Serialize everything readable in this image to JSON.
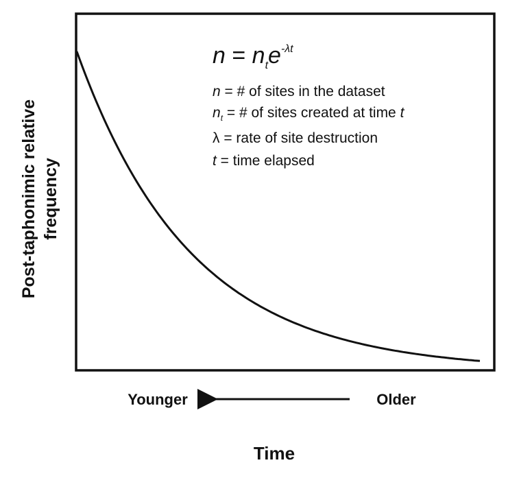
{
  "formula": {
    "lhs": "n",
    "equals": " = ",
    "base": "n",
    "base_sub": "t",
    "exp_base": "e",
    "exponent": "-λt"
  },
  "definitions": [
    {
      "symbol": "n",
      "text": " = # of sites in the dataset"
    },
    {
      "symbol": "n",
      "subscript": "t",
      "text": " = # of sites created at time ",
      "trailing": "t"
    },
    {
      "symbol": "λ",
      "text": " = rate of site destruction"
    },
    {
      "symbol": "t",
      "text": " = time elapsed"
    }
  ],
  "y_label": [
    "Post-taphonimic relative",
    "frequency"
  ],
  "x_left": "Younger",
  "x_right": "Older",
  "x_label": "Time"
}
